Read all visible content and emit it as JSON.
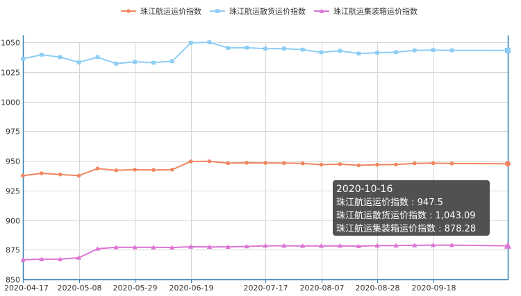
{
  "chart_data": {
    "type": "line",
    "title": "",
    "xlabel": "",
    "ylabel": "",
    "ylim": [
      850,
      1050
    ],
    "yticks": [
      850,
      875,
      900,
      925,
      950,
      975,
      1000,
      1025,
      1050
    ],
    "x_tick_labels": [
      "2020-04-17",
      "2020-05-08",
      "2020-05-29",
      "2020-06-19",
      "2020-07-17",
      "2020-08-07",
      "2020-08-28",
      "2020-09-18"
    ],
    "grid": true,
    "legend_position": "top-center",
    "x": [
      "2020-04-17",
      "2020-04-24",
      "2020-05-01",
      "2020-05-08",
      "2020-05-15",
      "2020-05-22",
      "2020-05-29",
      "2020-06-05",
      "2020-06-12",
      "2020-06-19",
      "2020-06-26",
      "2020-07-03",
      "2020-07-10",
      "2020-07-17",
      "2020-07-24",
      "2020-07-31",
      "2020-08-07",
      "2020-08-14",
      "2020-08-21",
      "2020-08-28",
      "2020-09-04",
      "2020-09-11",
      "2020-09-18",
      "2020-09-25",
      "2020-10-16"
    ],
    "series": [
      {
        "name": "珠江航运运价指数",
        "color": "#f08660",
        "marker": "circle",
        "values": [
          937.5,
          939.5,
          938.5,
          937.5,
          943.5,
          942,
          942.5,
          942.3,
          942.5,
          949.5,
          949.6,
          948,
          948.3,
          948.2,
          948.1,
          947.8,
          946.8,
          947.2,
          946.2,
          946.7,
          946.9,
          947.8,
          948,
          947.7,
          947.5
        ]
      },
      {
        "name": "珠江航运散货运价指数",
        "color": "#8dcdf3",
        "marker": "square",
        "values": [
          1036,
          1039.5,
          1037.5,
          1033,
          1037.5,
          1032,
          1033.5,
          1032.8,
          1034,
          1049.5,
          1050,
          1045.2,
          1045.5,
          1044.6,
          1044.7,
          1043.8,
          1041.5,
          1042.8,
          1040.5,
          1041.2,
          1041.6,
          1043.2,
          1043.4,
          1043.2,
          1043.09
        ]
      },
      {
        "name": "珠江航运集装箱运价指数",
        "color": "#dc74d3",
        "marker": "triangle",
        "values": [
          866.5,
          867,
          867,
          868.2,
          875.8,
          877,
          877.1,
          877,
          876.9,
          877.5,
          877.3,
          877.4,
          877.8,
          878.3,
          878.3,
          878.2,
          878.2,
          878.3,
          878,
          878.4,
          878.5,
          878.7,
          878.9,
          878.9,
          878.28
        ]
      }
    ]
  },
  "tooltip": {
    "date": "2020-10-16",
    "rows": [
      {
        "label": "珠江航运运价指数 : ",
        "value": "947.5"
      },
      {
        "label": "珠江航运散货运价指数 : ",
        "value": "1,043.09"
      },
      {
        "label": "珠江航运集装箱运价指数 : ",
        "value": "878.28"
      }
    ]
  }
}
